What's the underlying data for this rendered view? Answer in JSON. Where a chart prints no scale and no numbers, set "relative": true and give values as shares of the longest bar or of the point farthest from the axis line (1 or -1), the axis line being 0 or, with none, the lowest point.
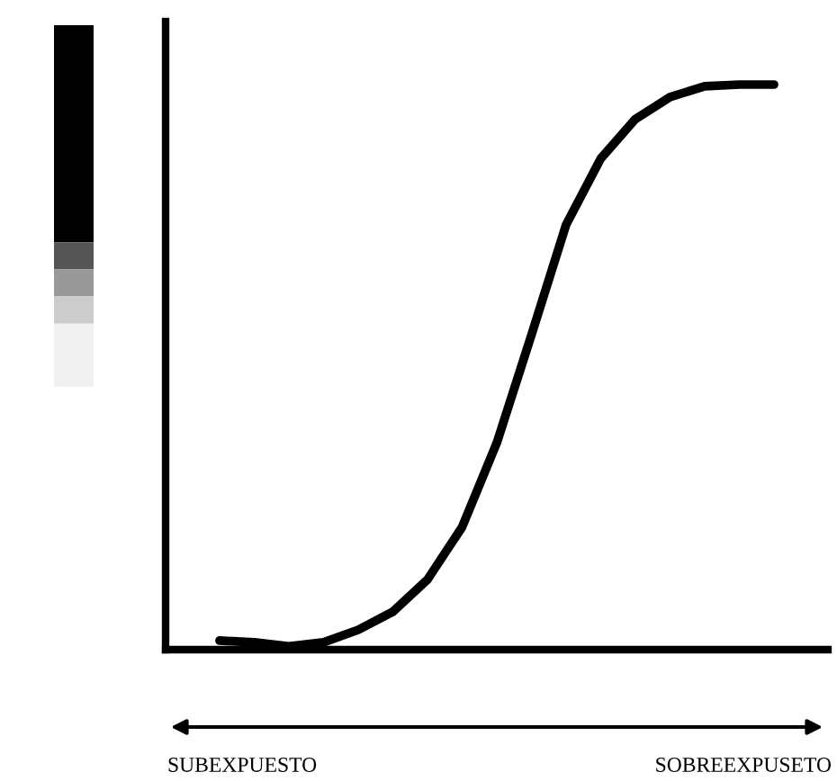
{
  "chart_data": {
    "type": "line",
    "relative": true,
    "categories": [
      null,
      null,
      null,
      null,
      null,
      null,
      null,
      null,
      null,
      null,
      null,
      null,
      null,
      null,
      null,
      null,
      null
    ],
    "series": [
      {
        "color": "#000000",
        "values": [
          0.016,
          0.013,
          0.006,
          0.013,
          0.035,
          0.067,
          0.124,
          0.217,
          0.366,
          0.557,
          0.752,
          0.869,
          0.939,
          0.978,
          0.997,
          1,
          1
        ]
      }
    ],
    "annotations": [
      "SUBEXPUESTO",
      "SOBREEXPUSETO"
    ],
    "legend": false,
    "marker": "none",
    "line_style": "solid"
  }
}
